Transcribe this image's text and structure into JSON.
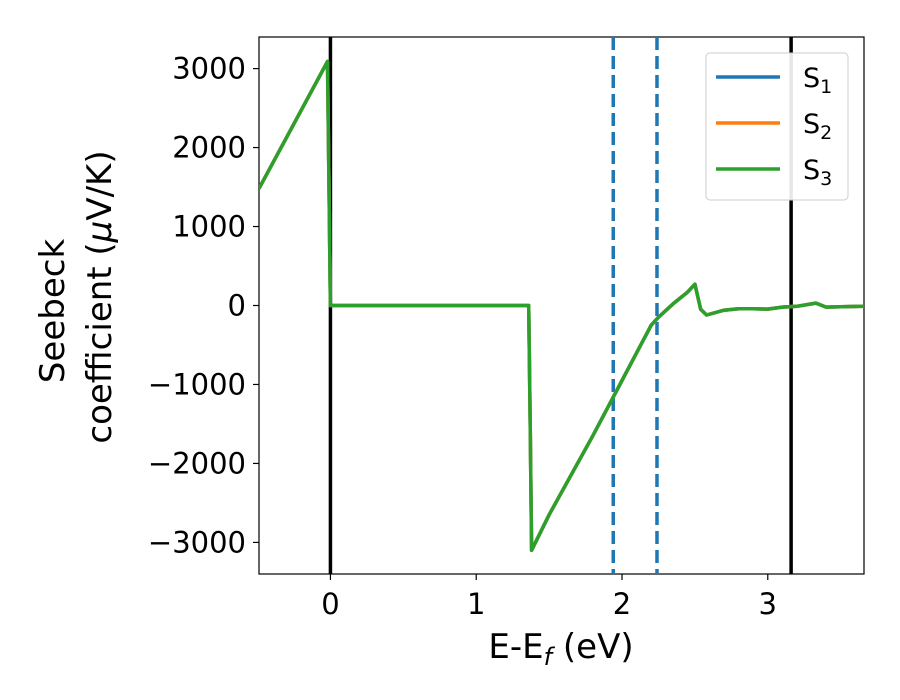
{
  "chart_data": {
    "type": "line",
    "title": "",
    "xlabel": {
      "main": "E-E",
      "sub": "f",
      "unit": " (eV)"
    },
    "ylabel": {
      "line1": "Seebeck",
      "line2": "coefficient  (",
      "mu": "μ",
      "unit": "V/K)"
    },
    "xlim": [
      -0.49,
      3.66
    ],
    "ylim": [
      -3400,
      3400
    ],
    "x_ticks": [
      0,
      1,
      2,
      3
    ],
    "x_tick_labels": [
      "0",
      "1",
      "2",
      "3"
    ],
    "y_ticks": [
      -3000,
      -2000,
      -1000,
      0,
      1000,
      2000,
      3000
    ],
    "y_tick_labels": [
      "−3000",
      "−2000",
      "−1000",
      "0",
      "1000",
      "2000",
      "3000"
    ],
    "grid": false,
    "legend_position": "top-right",
    "series": [
      {
        "name": "S",
        "sub": "1",
        "color": "#1f77b4"
      },
      {
        "name": "S",
        "sub": "2",
        "color": "#ff7f0e"
      },
      {
        "name": "S",
        "sub": "3",
        "color": "#2ca02c"
      }
    ],
    "curve": {
      "x": [
        -0.49,
        -0.02,
        -0.01,
        0.0,
        0.1,
        0.5,
        1.0,
        1.36,
        1.37,
        1.38,
        1.5,
        1.8,
        2.0,
        2.2,
        2.25,
        2.35,
        2.45,
        2.5,
        2.54,
        2.58,
        2.7,
        2.8,
        2.9,
        3.0,
        3.1,
        3.2,
        3.3,
        3.33,
        3.4,
        3.5,
        3.66
      ],
      "y": [
        1480,
        3090,
        1500,
        0,
        0,
        0,
        0,
        0,
        -1500,
        -3100,
        -2650,
        -1650,
        -950,
        -250,
        -150,
        20,
        170,
        270,
        -50,
        -120,
        -60,
        -40,
        -40,
        -45,
        -20,
        -10,
        20,
        30,
        -20,
        -15,
        -10
      ]
    },
    "vertical_lines": [
      {
        "x": 0.0,
        "style": "solid",
        "color": "#000000"
      },
      {
        "x": 3.16,
        "style": "solid",
        "color": "#000000"
      },
      {
        "x": 1.94,
        "style": "dashed",
        "color": "#1f77b4"
      },
      {
        "x": 2.24,
        "style": "dashed",
        "color": "#1f77b4"
      }
    ]
  }
}
